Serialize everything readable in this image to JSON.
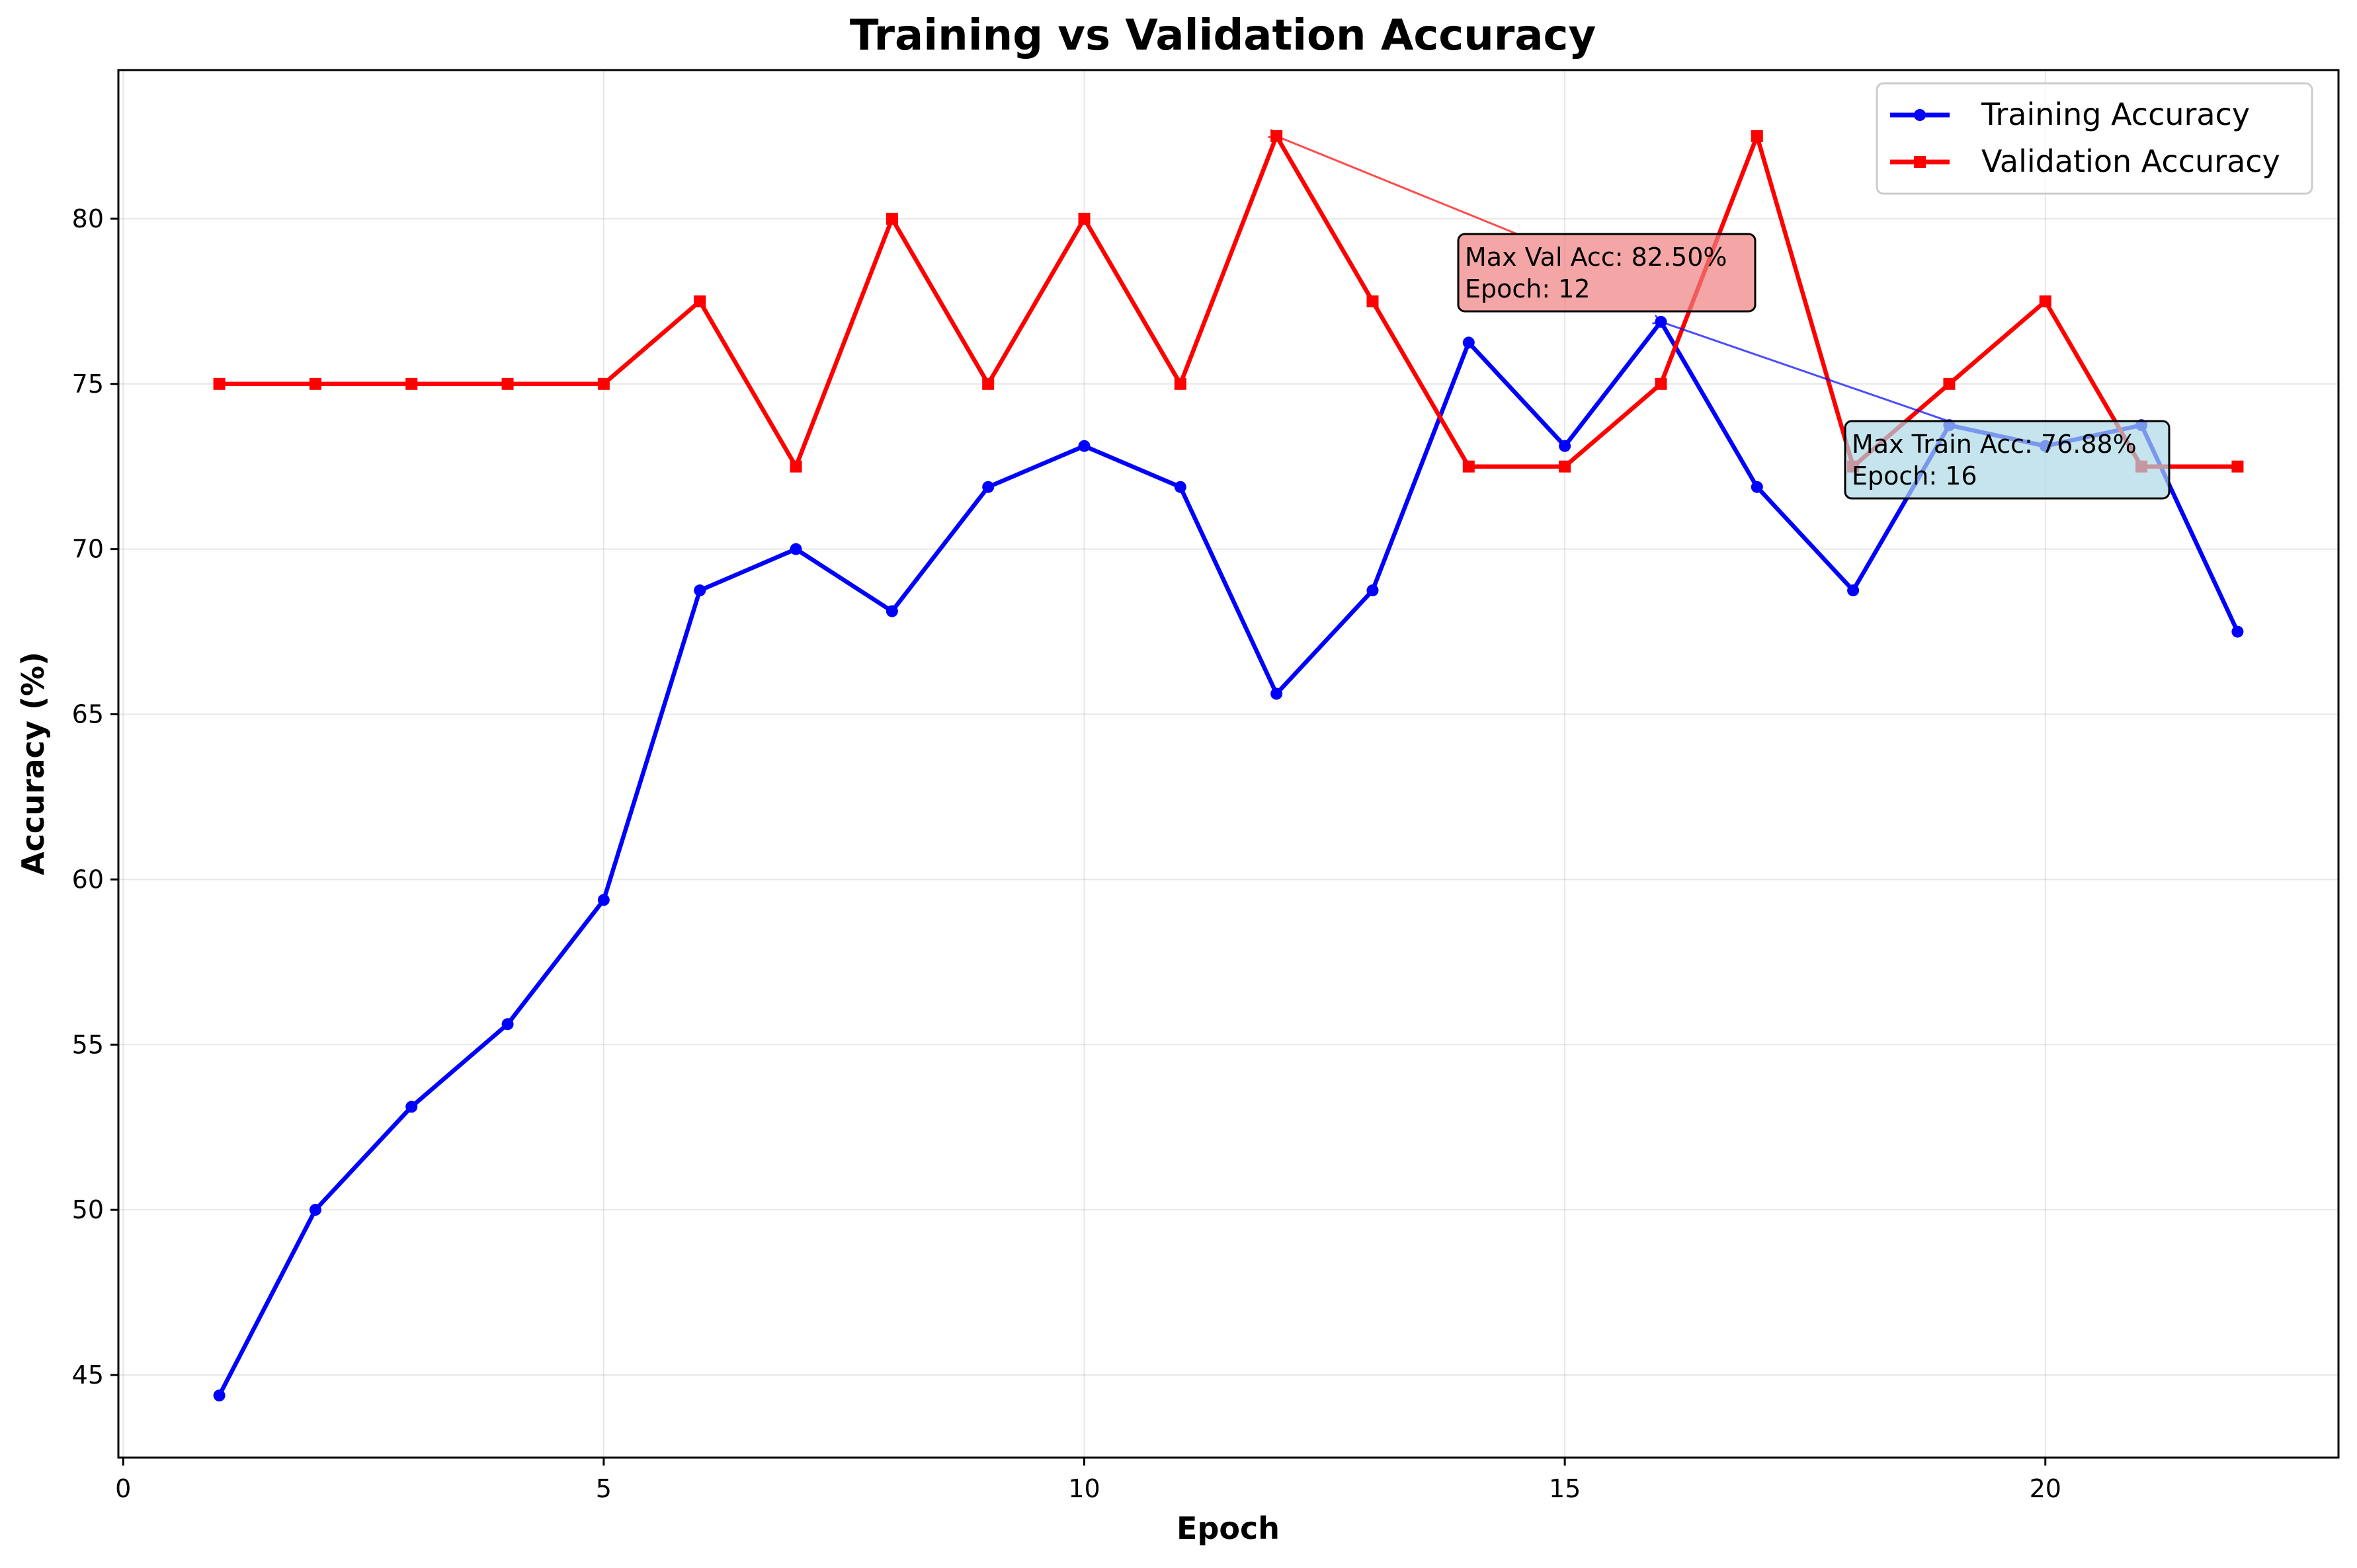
{
  "chart_data": {
    "type": "line",
    "title": "Training vs Validation Accuracy",
    "xlabel": "Epoch",
    "ylabel": "Accuracy (%)",
    "xlim": [
      -0.05,
      23.05
    ],
    "ylim": [
      42.5,
      84.5
    ],
    "xticks": [
      0,
      5,
      10,
      15,
      20
    ],
    "yticks": [
      45,
      50,
      55,
      60,
      65,
      70,
      75,
      80
    ],
    "grid": true,
    "legend_position": "top-right",
    "x": [
      1,
      2,
      3,
      4,
      5,
      6,
      7,
      8,
      9,
      10,
      11,
      12,
      13,
      14,
      15,
      16,
      17,
      18,
      19,
      20,
      21,
      22
    ],
    "series": [
      {
        "name": "Training Accuracy",
        "color": "#0000ff",
        "marker": "circle",
        "values": [
          44.38,
          50.0,
          53.12,
          55.62,
          59.38,
          68.75,
          70.0,
          68.12,
          71.88,
          73.12,
          71.88,
          65.62,
          68.75,
          76.25,
          73.12,
          76.88,
          71.88,
          68.75,
          73.75,
          73.12,
          73.75,
          67.5
        ]
      },
      {
        "name": "Validation Accuracy",
        "color": "#ff0000",
        "marker": "square",
        "values": [
          75.0,
          75.0,
          75.0,
          75.0,
          75.0,
          77.5,
          72.5,
          80.0,
          75.0,
          80.0,
          75.0,
          82.5,
          77.5,
          72.5,
          72.5,
          75.0,
          82.5,
          72.5,
          75.0,
          77.5,
          72.5,
          72.5
        ]
      }
    ],
    "annotations": [
      {
        "line1": "Max Val Acc: 82.50%",
        "line2": "Epoch: 12",
        "target_x": 12,
        "target_y": 82.5,
        "box_color": "#f08080",
        "arrow_color": "#ff0000"
      },
      {
        "line1": "Max Train Acc: 76.88%",
        "line2": "Epoch: 16",
        "target_x": 16,
        "target_y": 76.88,
        "box_color": "#add8e6",
        "arrow_color": "#0000ff"
      }
    ]
  }
}
